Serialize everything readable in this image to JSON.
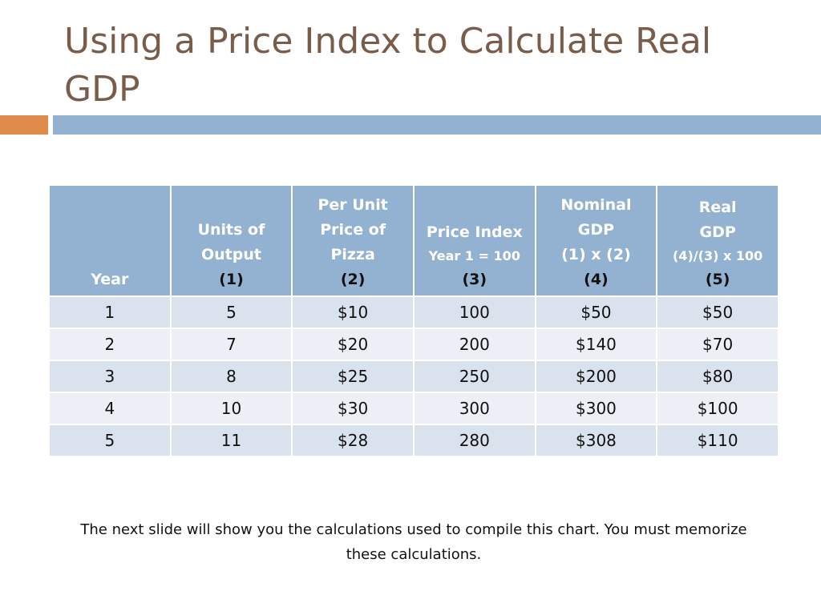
{
  "title": "Using a Price Index to Calculate Real GDP",
  "colors": {
    "title": "#7a5c4b",
    "accent_orange": "#e08a4a",
    "accent_blue": "#93b2d1",
    "row_dark": "#d9e2ed",
    "row_light": "#ecf0f6"
  },
  "table": {
    "headers": {
      "year": "Year",
      "units_line1": "Units of",
      "units_line2": "Output",
      "units_num": "(1)",
      "price_line1": "Per Unit",
      "price_line2": "Price of",
      "price_line3": "Pizza",
      "price_num": "(2)",
      "index_line1": "Price Index",
      "index_line2": "Year 1 = 100",
      "index_num": "(3)",
      "nominal_line1": "Nominal",
      "nominal_line2": "GDP",
      "nominal_line3": "(1) x (2)",
      "nominal_num": "(4)",
      "real_line1": "Real",
      "real_line2": "GDP",
      "real_line3": "(4)/(3) x 100",
      "real_num": "(5)"
    },
    "rows": [
      [
        "1",
        "5",
        "$10",
        "100",
        "$50",
        "$50"
      ],
      [
        "2",
        "7",
        "$20",
        "200",
        "$140",
        "$70"
      ],
      [
        "3",
        "8",
        "$25",
        "250",
        "$200",
        "$80"
      ],
      [
        "4",
        "10",
        "$30",
        "300",
        "$300",
        "$100"
      ],
      [
        "5",
        "11",
        "$28",
        "280",
        "$308",
        "$110"
      ]
    ]
  },
  "note": "The next slide will show you the calculations used to compile this chart. You must memorize these calculations."
}
